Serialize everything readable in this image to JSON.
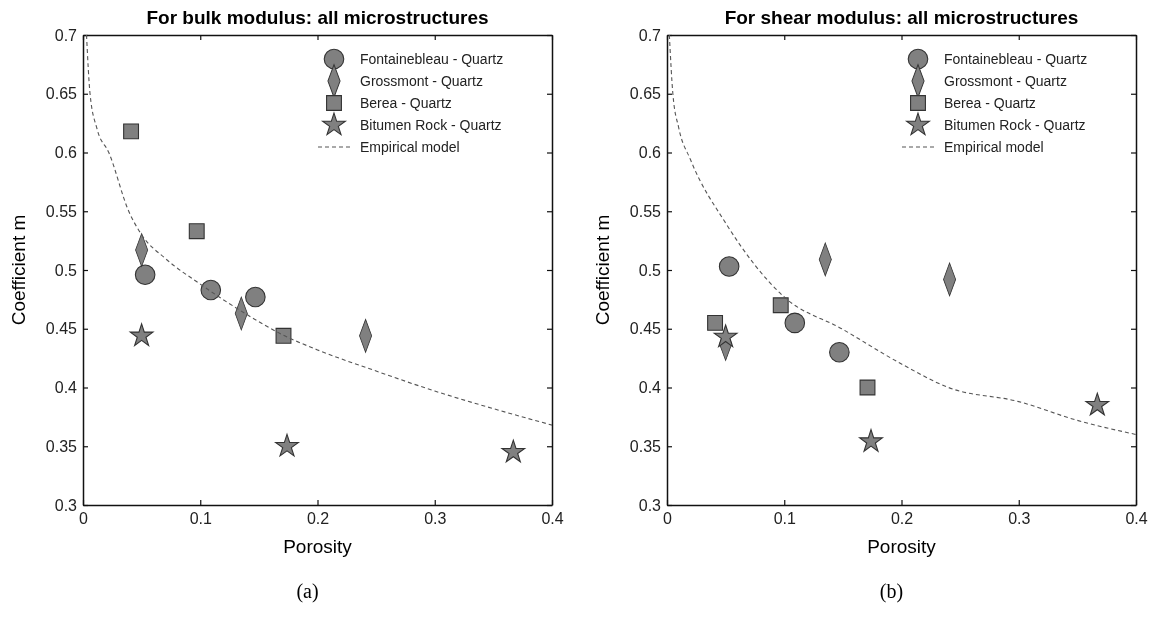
{
  "chart_data": [
    {
      "type": "scatter",
      "title": "For bulk modulus: all microstructures",
      "xlabel": "Porosity",
      "ylabel": "Coefficient m",
      "xlim": [
        0,
        0.4
      ],
      "ylim": [
        0.3,
        0.7
      ],
      "xticks": [
        0,
        0.1,
        0.2,
        0.3,
        0.4
      ],
      "yticks": [
        0.3,
        0.35,
        0.4,
        0.45,
        0.5,
        0.55,
        0.6,
        0.65,
        0.7
      ],
      "grid": false,
      "legend": "top right",
      "annotations": [
        "(a)"
      ],
      "series": [
        {
          "name": "Fontainebleau - Quartz",
          "color": "#808080",
          "marker": "circle",
          "x": [
            0.053,
            0.109,
            0.147
          ],
          "values": [
            0.496,
            0.483,
            0.477
          ]
        },
        {
          "name": "Grossmont - Quartz",
          "color": "#808080",
          "marker": "diamond",
          "x": [
            0.05,
            0.135,
            0.241
          ],
          "values": [
            0.517,
            0.463,
            0.444
          ]
        },
        {
          "name": "Berea - Quartz",
          "color": "#808080",
          "marker": "square",
          "x": [
            0.041,
            0.097,
            0.171
          ],
          "values": [
            0.618,
            0.533,
            0.444
          ]
        },
        {
          "name": "Bitumen Rock - Quartz",
          "color": "#808080",
          "marker": "star",
          "x": [
            0.05,
            0.174,
            0.367
          ],
          "values": [
            0.444,
            0.35,
            0.345
          ]
        },
        {
          "name": "Empirical model",
          "type": "line",
          "color": "#555555",
          "marker": "none",
          "line_style": "dashed",
          "x": [
            0.003,
            0.006,
            0.012,
            0.022,
            0.039,
            0.05,
            0.07,
            0.1,
            0.135,
            0.172,
            0.2,
            0.25,
            0.3,
            0.35,
            0.4
          ],
          "values": [
            0.7,
            0.65,
            0.62,
            0.6,
            0.55,
            0.53,
            0.51,
            0.488,
            0.465,
            0.444,
            0.432,
            0.414,
            0.397,
            0.382,
            0.368
          ]
        }
      ]
    },
    {
      "type": "scatter",
      "title": "For shear modulus: all microstructures",
      "xlabel": "Porosity",
      "ylabel": "Coefficient m",
      "xlim": [
        0,
        0.4
      ],
      "ylim": [
        0.3,
        0.7
      ],
      "xticks": [
        0,
        0.1,
        0.2,
        0.3,
        0.4
      ],
      "yticks": [
        0.3,
        0.35,
        0.4,
        0.45,
        0.5,
        0.55,
        0.6,
        0.65,
        0.7
      ],
      "grid": false,
      "legend": "top right",
      "annotations": [
        "(b)"
      ],
      "series": [
        {
          "name": "Fontainebleau - Quartz",
          "color": "#808080",
          "marker": "circle",
          "x": [
            0.053,
            0.109,
            0.147
          ],
          "values": [
            0.503,
            0.455,
            0.43
          ]
        },
        {
          "name": "Grossmont - Quartz",
          "color": "#808080",
          "marker": "diamond",
          "x": [
            0.05,
            0.135,
            0.241
          ],
          "values": [
            0.437,
            0.509,
            0.492
          ]
        },
        {
          "name": "Berea - Quartz",
          "color": "#808080",
          "marker": "square",
          "x": [
            0.041,
            0.097,
            0.171
          ],
          "values": [
            0.455,
            0.47,
            0.4
          ]
        },
        {
          "name": "Bitumen Rock - Quartz",
          "color": "#808080",
          "marker": "star",
          "x": [
            0.05,
            0.174,
            0.367
          ],
          "values": [
            0.443,
            0.354,
            0.385
          ]
        },
        {
          "name": "Empirical model",
          "type": "line",
          "color": "#555555",
          "marker": "none",
          "line_style": "dashed",
          "x": [
            0.002,
            0.005,
            0.01,
            0.02,
            0.05,
            0.1,
            0.149,
            0.2,
            0.24,
            0.3,
            0.35,
            0.4
          ],
          "values": [
            0.7,
            0.65,
            0.621,
            0.594,
            0.54,
            0.477,
            0.45,
            0.42,
            0.4,
            0.388,
            0.372,
            0.36
          ]
        }
      ]
    }
  ]
}
